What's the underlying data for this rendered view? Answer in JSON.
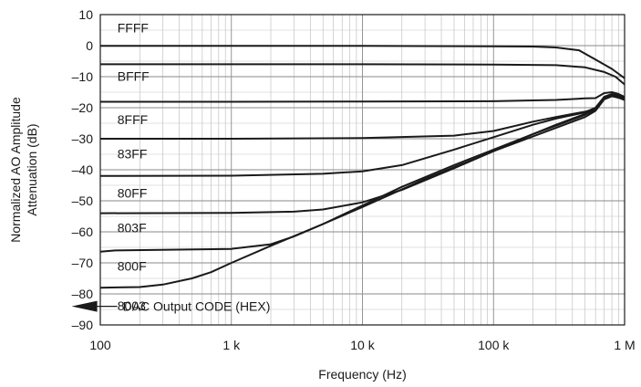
{
  "chart_data": {
    "type": "line",
    "xlabel": "Frequency (Hz)",
    "ylabel_lines": [
      "Normalized AO Amplitude",
      "Attenuation (dB)"
    ],
    "xscale": "log",
    "xlim": [
      100,
      1000000
    ],
    "ylim": [
      -90,
      10
    ],
    "grid": true,
    "x_ticks": [
      {
        "value": 100,
        "label": "100"
      },
      {
        "value": 1000,
        "label": "1 k"
      },
      {
        "value": 10000,
        "label": "10 k"
      },
      {
        "value": 100000,
        "label": "100 k"
      },
      {
        "value": 1000000,
        "label": "1 M"
      }
    ],
    "y_ticks": [
      {
        "value": 10,
        "label": "10"
      },
      {
        "value": 0,
        "label": "0"
      },
      {
        "value": -10,
        "label": "–10"
      },
      {
        "value": -20,
        "label": "–20"
      },
      {
        "value": -30,
        "label": "–30"
      },
      {
        "value": -40,
        "label": "–40"
      },
      {
        "value": -50,
        "label": "–50"
      },
      {
        "value": -60,
        "label": "–60"
      },
      {
        "value": -70,
        "label": "–70"
      },
      {
        "value": -80,
        "label": "–80"
      },
      {
        "value": -90,
        "label": "–90"
      }
    ],
    "annotation": {
      "text": "DAC Output CODE (HEX)",
      "x": 300,
      "y": -84
    },
    "series": [
      {
        "name": "FFFF",
        "label_x": 135,
        "label_y": 4.2,
        "x": [
          100,
          1000,
          10000,
          100000,
          200000,
          300000,
          450000,
          600000,
          800000,
          1000000
        ],
        "y": [
          -0.1,
          -0.1,
          -0.1,
          -0.2,
          -0.3,
          -0.6,
          -1.5,
          -4.5,
          -7.5,
          -10.5
        ]
      },
      {
        "name": "BFFF",
        "label_x": 135,
        "label_y": -11.3,
        "x": [
          100,
          1000,
          10000,
          100000,
          300000,
          500000,
          700000,
          850000,
          1000000
        ],
        "y": [
          -6.0,
          -6.0,
          -6.0,
          -6.1,
          -6.3,
          -7.0,
          -8.5,
          -10.0,
          -12.5
        ]
      },
      {
        "name": "8FFF",
        "label_x": 135,
        "label_y": -25.3,
        "x": [
          100,
          1000,
          10000,
          100000,
          300000,
          500000,
          600000,
          700000,
          800000,
          900000,
          1000000
        ],
        "y": [
          -18.1,
          -18.1,
          -18.0,
          -17.9,
          -17.5,
          -17.0,
          -16.9,
          -15.3,
          -15.0,
          -15.6,
          -16.5
        ]
      },
      {
        "name": "83FF",
        "label_x": 135,
        "label_y": -36.3,
        "x": [
          100,
          1000,
          10000,
          50000,
          100000,
          200000,
          300000,
          400000,
          500000,
          600000,
          700000,
          800000,
          900000,
          1000000
        ],
        "y": [
          -30.0,
          -30.0,
          -29.8,
          -29.0,
          -27.5,
          -24.5,
          -23.0,
          -22.0,
          -21.3,
          -20.3,
          -16.5,
          -15.6,
          -16.0,
          -17.0
        ]
      },
      {
        "name": "80FF",
        "label_x": 135,
        "label_y": -49.0,
        "x": [
          100,
          1000,
          5000,
          10000,
          20000,
          50000,
          100000,
          200000,
          300000,
          500000,
          600000,
          700000,
          800000,
          900000,
          1000000
        ],
        "y": [
          -42.0,
          -41.9,
          -41.3,
          -40.5,
          -38.5,
          -33.5,
          -29.5,
          -25.5,
          -23.5,
          -21.5,
          -20.0,
          -16.5,
          -15.8,
          -16.3,
          -17.0
        ]
      },
      {
        "name": "803F",
        "label_x": 135,
        "label_y": -60.2,
        "x": [
          100,
          1000,
          3000,
          5000,
          10000,
          20000,
          50000,
          100000,
          200000,
          300000,
          500000,
          600000,
          700000,
          800000,
          900000,
          1000000
        ],
        "y": [
          -54.0,
          -53.9,
          -53.5,
          -52.8,
          -50.5,
          -46.5,
          -39.5,
          -34.0,
          -28.5,
          -25.5,
          -22.0,
          -20.2,
          -16.8,
          -16.0,
          -16.5,
          -17.0
        ]
      },
      {
        "name": "800F",
        "label_x": 135,
        "label_y": -72.5,
        "x": [
          100,
          130,
          1000,
          2000,
          3000,
          5000,
          10000,
          20000,
          50000,
          100000,
          200000,
          300000,
          500000,
          600000,
          700000,
          800000,
          900000,
          1000000
        ],
        "y": [
          -66.4,
          -66.0,
          -65.5,
          -64.0,
          -61.5,
          -57.5,
          -51.5,
          -45.5,
          -38.5,
          -33.5,
          -28.5,
          -25.8,
          -22.3,
          -20.5,
          -17.0,
          -16.0,
          -16.5,
          -17.2
        ]
      },
      {
        "name": "8003",
        "label_x": 135,
        "label_y": -85.3,
        "x": [
          100,
          200,
          300,
          500,
          700,
          1000,
          2000,
          5000,
          10000,
          30000,
          100000,
          300000,
          500000,
          600000,
          700000,
          800000,
          900000,
          1000000
        ],
        "y": [
          -78.0,
          -77.8,
          -77.0,
          -75.0,
          -73.0,
          -70.0,
          -64.5,
          -57.5,
          -52.0,
          -43.0,
          -34.0,
          -26.5,
          -23.0,
          -21.0,
          -17.3,
          -16.3,
          -16.8,
          -17.5
        ]
      }
    ]
  }
}
